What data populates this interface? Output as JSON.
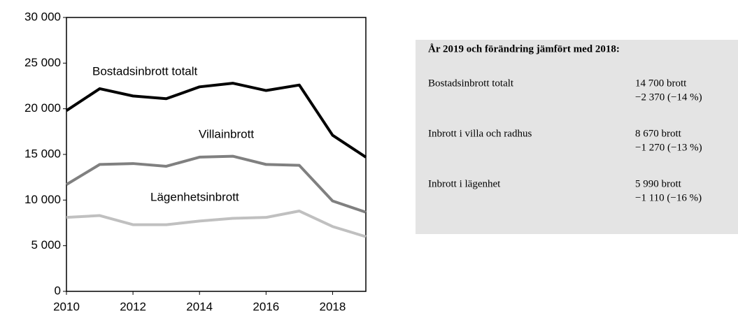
{
  "chart_data": {
    "type": "line",
    "x": [
      2010,
      2011,
      2012,
      2013,
      2014,
      2015,
      2016,
      2017,
      2018,
      2019
    ],
    "series": [
      {
        "name": "Bostadsinbrott totalt",
        "color": "#000000",
        "values": [
          19800,
          22200,
          21400,
          21100,
          22400,
          22800,
          22000,
          22600,
          17100,
          14700
        ]
      },
      {
        "name": "Villainbrott",
        "color": "#808080",
        "values": [
          11700,
          13900,
          14000,
          13700,
          14700,
          14800,
          13900,
          13800,
          9900,
          8670
        ]
      },
      {
        "name": "Lägenhetsinbrott",
        "color": "#c0c0c0",
        "values": [
          8100,
          8300,
          7300,
          7300,
          7700,
          8000,
          8100,
          8800,
          7100,
          5990
        ]
      }
    ],
    "xlim": [
      2010,
      2019
    ],
    "xticks": [
      2010,
      2012,
      2014,
      2016,
      2018
    ],
    "ylim": [
      0,
      30000
    ],
    "yticks": [
      0,
      {
        "value": 5000,
        "label": "5 000"
      },
      {
        "value": 10000,
        "label": "10 000"
      },
      {
        "value": 15000,
        "label": "15 000"
      },
      {
        "value": 20000,
        "label": "20 000"
      },
      {
        "value": 25000,
        "label": "25 000"
      },
      {
        "value": 30000,
        "label": "30 000"
      }
    ]
  },
  "panel": {
    "title": "År 2019 och förändring jämfört med 2018:",
    "rows": [
      {
        "label": "Bostadsinbrott totalt",
        "value": "14 700 brott",
        "change": "−2 370 (−14 %)"
      },
      {
        "label": "Inbrott i villa och radhus",
        "value": "8 670 brott",
        "change": "−1 270 (−13 %)"
      },
      {
        "label": "Inbrott i lägenhet",
        "value": "5 990 brott",
        "change": "−1 110 (−16 %)"
      }
    ]
  }
}
